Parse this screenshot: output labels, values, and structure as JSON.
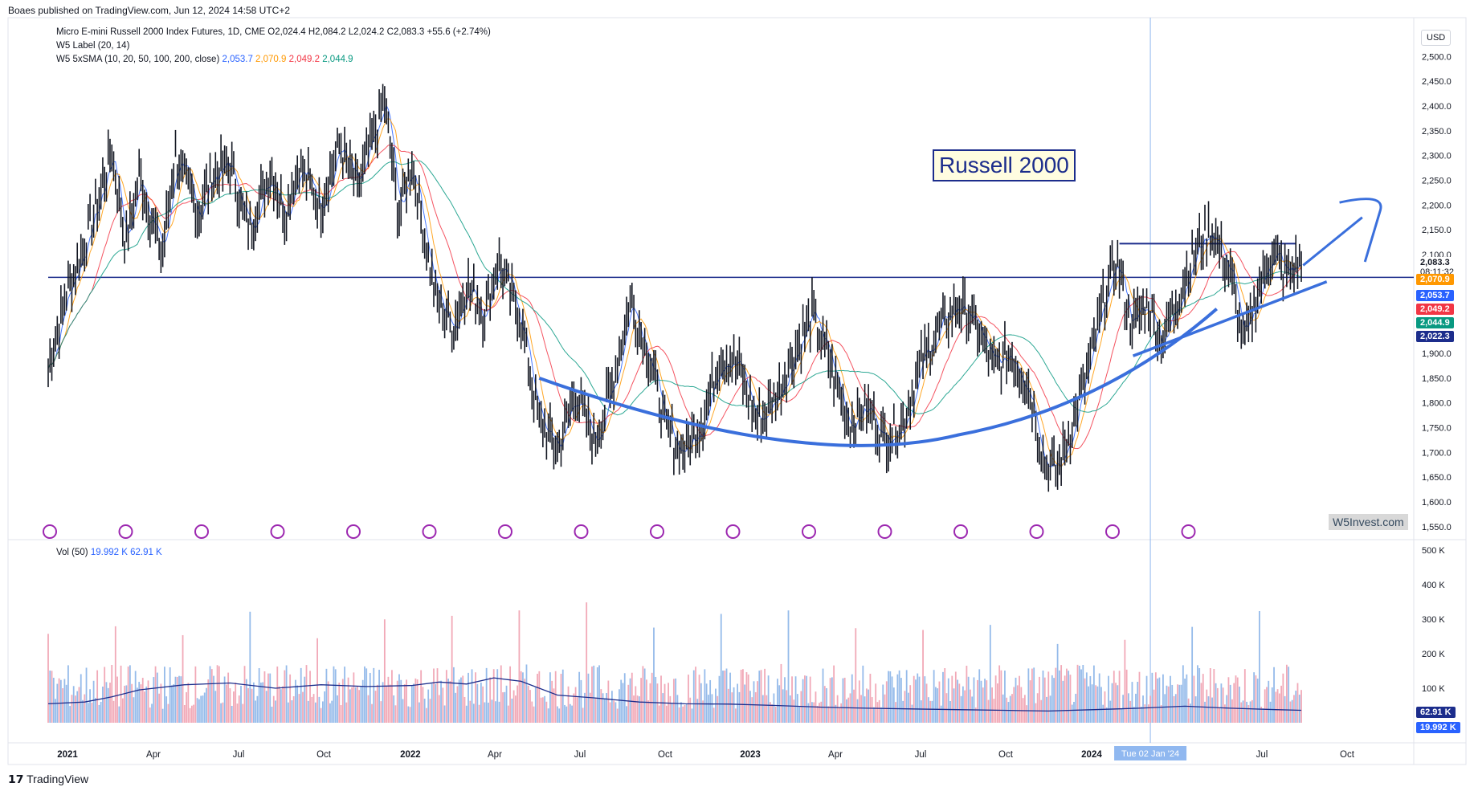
{
  "header": {
    "published": "Boaes published on TradingView.com, Jun 12, 2024 14:58 UTC+2"
  },
  "legend": {
    "symbol_line": "Micro E-mini Russell 2000 Index Futures, 1D, CME  O2,024.4  H2,084.2  L2,024.2  C2,083.3  +55.6 (+2.74%)",
    "label_line": "W5 Label (20, 14)",
    "sma_line_prefix": "W5 5xSMA (10, 20, 50, 100, 200, close)",
    "sma_values": [
      "2,053.7",
      "2,070.9",
      "2,049.2",
      "2,044.9"
    ],
    "sma_colors": [
      "#2962ff",
      "#ff9800",
      "#f23645",
      "#089981"
    ],
    "vol_prefix": "Vol (50)",
    "vol_values": [
      "19.992 K",
      "62.91 K"
    ],
    "vol_colors": [
      "#2962ff",
      "#2962ff"
    ]
  },
  "annotation": {
    "title": "Russell 2000"
  },
  "watermark": "W5Invest.com",
  "currency": "USD",
  "footer_logo": "TradingView",
  "price_badges": [
    {
      "text": "2,083.3",
      "sub": "08:11:32",
      "color": "#ffffff",
      "fg": "#131722"
    },
    {
      "text": "2,070.9",
      "color": "#ff9800"
    },
    {
      "text": "2,053.7",
      "color": "#2962ff"
    },
    {
      "text": "2,049.2",
      "color": "#f23645"
    },
    {
      "text": "2,044.9",
      "color": "#089981"
    },
    {
      "text": "2,022.3",
      "color": "#1c2d8c"
    }
  ],
  "vol_badges": [
    {
      "text": "62.91 K",
      "color": "#1c2d8c"
    },
    {
      "text": "19.992 K",
      "color": "#2962ff"
    }
  ],
  "date_label": "Tue 02 Jan '24",
  "chart_data": {
    "type": "line",
    "title": "Micro E-mini Russell 2000 Index Futures, 1D, CME",
    "price_axis": {
      "ticks": [
        1550,
        1600,
        1650,
        1700,
        1750,
        1800,
        1850,
        1900,
        1950,
        2000,
        2050,
        2100,
        2150,
        2200,
        2250,
        2300,
        2350,
        2400,
        2450,
        2500
      ],
      "tick_labels": [
        "1,550.0",
        "1,600.0",
        "1,650.0",
        "1,700.0",
        "1,750.0",
        "1,800.0",
        "1,850.0",
        "1,900.0",
        "",
        "",
        "",
        "2,100.0",
        "2,150.0",
        "2,200.0",
        "2,250.0",
        "2,300.0",
        "2,350.0",
        "2,400.0",
        "2,450.0",
        "2,500.0"
      ],
      "ylim": [
        1535,
        2525
      ]
    },
    "volume_axis": {
      "ticks": [
        "100 K",
        "200 K",
        "300 K",
        "400 K",
        "500 K"
      ],
      "ylim": [
        0,
        500000
      ]
    },
    "time_axis": [
      "2021",
      "Apr",
      "Jul",
      "Oct",
      "2022",
      "Apr",
      "Jul",
      "Oct",
      "2023",
      "Apr",
      "Jul",
      "Oct",
      "2024",
      "Apr",
      "Jul",
      "Oct"
    ],
    "time_axis_bold": [
      "2021",
      "2022",
      "2023",
      "2024"
    ],
    "close_series": {
      "name": "Close",
      "x": [
        0,
        2,
        4,
        6,
        8,
        10,
        12,
        14,
        16,
        18,
        20,
        22,
        24,
        26,
        28,
        30,
        32,
        34,
        36,
        38,
        40,
        42,
        44,
        46,
        48,
        50,
        52,
        54,
        56,
        58,
        60,
        62,
        64,
        66,
        68,
        70,
        72,
        74,
        76,
        78,
        80,
        82,
        84,
        86,
        88,
        90,
        92,
        94,
        96,
        98,
        100,
        102,
        104,
        106,
        108,
        110,
        112,
        114,
        116,
        118,
        120,
        122,
        124,
        126,
        128,
        130,
        132,
        134,
        136,
        138,
        140,
        142,
        144,
        146,
        148,
        150,
        152,
        154,
        156,
        158,
        160,
        162,
        164,
        166,
        168,
        170,
        172,
        174,
        176,
        178,
        180,
        182,
        184,
        186,
        188,
        190,
        192,
        194,
        196,
        198,
        200,
        202,
        204,
        206,
        208,
        210,
        212,
        214,
        216,
        218,
        220,
        222,
        224,
        226,
        228,
        230,
        232,
        234,
        236,
        238,
        240,
        242,
        244,
        246,
        248,
        250,
        252,
        254,
        256,
        258,
        260,
        262,
        264,
        266,
        268,
        270,
        272,
        274,
        276,
        278,
        280,
        282,
        284,
        286,
        288,
        290,
        292,
        294,
        296,
        298,
        300,
        302,
        304,
        306,
        308,
        310,
        312,
        314,
        316,
        318,
        320,
        322,
        324,
        326,
        328,
        330,
        332,
        334,
        336,
        338,
        340,
        342,
        344,
        346,
        348,
        350,
        352,
        354,
        356,
        358,
        360,
        362,
        364,
        366,
        368,
        370,
        372,
        374,
        376,
        378,
        380,
        382,
        384,
        386,
        388,
        390,
        392,
        394,
        396,
        398,
        400,
        402,
        404,
        406,
        408,
        410,
        412,
        414,
        416,
        418,
        420,
        422,
        424,
        426,
        428,
        430,
        432,
        434,
        436,
        438,
        440,
        442,
        444,
        446,
        448,
        450,
        452,
        454,
        456,
        458,
        460,
        462,
        464,
        466,
        468,
        470,
        472,
        474,
        476,
        478,
        480,
        482,
        484,
        486,
        488,
        490,
        492,
        494,
        496,
        498,
        500,
        502,
        504,
        506,
        508,
        510,
        512,
        514,
        516,
        518,
        520,
        522,
        524,
        526,
        528,
        530,
        532,
        534,
        536,
        538,
        540,
        542,
        544,
        546,
        548,
        550,
        552,
        554,
        556,
        558,
        560,
        562,
        564,
        566,
        568,
        570,
        572,
        574,
        576,
        578,
        580,
        582,
        584,
        586,
        588,
        590,
        592,
        594,
        596,
        598,
        600,
        602,
        604,
        606,
        608,
        610,
        612,
        614,
        616,
        618,
        620,
        622,
        624,
        626,
        628,
        630,
        632,
        634,
        636,
        638,
        640,
        642,
        644,
        646,
        648,
        650,
        652,
        654,
        656,
        658,
        660,
        662,
        664,
        666,
        668,
        670,
        672,
        674,
        676,
        678,
        680,
        682,
        684,
        686,
        688,
        690,
        692,
        694,
        696,
        698,
        700,
        702,
        704,
        706,
        708,
        710,
        712,
        714,
        716,
        718,
        720,
        722,
        724,
        726,
        728,
        730,
        732,
        734,
        736,
        738,
        740,
        742,
        744,
        746,
        748,
        750,
        752,
        754,
        756,
        758,
        760,
        762,
        764,
        766,
        768,
        770,
        772,
        774,
        776,
        778,
        780,
        782,
        784,
        786,
        788,
        790,
        792,
        794,
        796,
        798,
        800,
        802,
        804,
        806,
        808,
        810,
        812,
        814,
        816,
        818,
        820,
        822,
        824,
        826,
        828,
        830,
        832,
        834,
        836,
        838,
        840,
        842,
        844,
        846,
        848,
        850,
        852,
        854,
        856,
        858,
        860,
        862,
        864,
        866,
        868,
        870,
        872,
        874,
        876,
        878,
        880,
        882,
        884,
        886,
        888,
        890,
        892,
        894,
        896,
        898,
        900,
        902,
        904,
        906,
        908,
        910,
        912,
        914,
        916,
        918,
        920,
        922,
        924,
        926,
        928,
        930,
        932,
        934,
        936,
        938,
        940,
        942,
        944,
        946,
        948,
        950,
        952,
        954,
        956,
        958,
        960,
        962,
        964,
        966,
        968,
        970,
        972,
        974,
        976,
        978,
        980,
        982,
        984,
        986,
        988,
        990,
        992,
        994,
        996,
        998,
        1000,
        1002,
        1004,
        1006,
        1008,
        1010,
        1012,
        1014,
        1016,
        1018,
        1020,
        1022,
        1024,
        1026,
        1028,
        1030,
        1032,
        1034,
        1036,
        1038,
        1040,
        1042,
        1044,
        1046,
        1048,
        1050,
        1052,
        1054,
        1056,
        1058,
        1060,
        1062,
        1064,
        1066,
        1068,
        1070,
        1072,
        1074,
        1076,
        1078,
        1080,
        1082,
        1084,
        1086,
        1088,
        1090,
        1092,
        1094,
        1096,
        1098,
        1100,
        1102,
        1104,
        1106,
        1108,
        1110,
        1112,
        1114,
        1116,
        1118,
        1120,
        1122,
        1124,
        1126,
        1128,
        1130,
        1132,
        1134,
        1136,
        1138,
        1140,
        1142,
        1144,
        1146,
        1148,
        1150,
        1152,
        1154,
        1156,
        1158,
        1160,
        1162,
        1164,
        1166,
        1168,
        1170,
        1172,
        1174,
        1176,
        1178,
        1180,
        1182,
        1184,
        1186,
        1188,
        1190,
        1192,
        1194,
        1196,
        1198,
        1200,
        1202,
        1204,
        1206,
        1208,
        1210,
        1212,
        1214,
        1216,
        1218,
        1220,
        1222,
        1224,
        1226,
        1228,
        1230,
        1232,
        1234,
        1236,
        1238,
        1240,
        1242,
        1244,
        1246,
        1248,
        1250,
        1252,
        1254,
        1256,
        1258,
        1260,
        1262,
        1264,
        1266,
        1268,
        1270,
        1272,
        1274,
        1276,
        1278,
        1280,
        1282,
        1284,
        1286,
        1288,
        1290,
        1292,
        1294,
        1296,
        1298,
        1300,
        1302,
        1304,
        1306,
        1308,
        1310,
        1312,
        1314,
        1316,
        1318,
        1320,
        1322,
        1324,
        1326,
        1328,
        1330,
        1332,
        1334,
        1336,
        1338,
        1340,
        1342,
        1344,
        1346,
        1348,
        1350,
        1352,
        1354,
        1356,
        1358,
        1360,
        1362,
        1364,
        1366,
        1368,
        1370,
        1372,
        1374,
        1376,
        1378
      ],
      "anchors": [
        [
          0,
          1870
        ],
        [
          20,
          2020
        ],
        [
          40,
          2120
        ],
        [
          55,
          2210
        ],
        [
          70,
          2310
        ],
        [
          85,
          2120
        ],
        [
          100,
          2260
        ],
        [
          125,
          2100
        ],
        [
          140,
          2300
        ],
        [
          165,
          2180
        ],
        [
          180,
          2260
        ],
        [
          200,
          2280
        ],
        [
          220,
          2150
        ],
        [
          245,
          2270
        ],
        [
          260,
          2180
        ],
        [
          275,
          2280
        ],
        [
          300,
          2200
        ],
        [
          320,
          2320
        ],
        [
          340,
          2230
        ],
        [
          355,
          2320
        ],
        [
          370,
          2410
        ],
        [
          385,
          2180
        ],
        [
          400,
          2290
        ],
        [
          425,
          2020
        ],
        [
          445,
          1950
        ],
        [
          460,
          2040
        ],
        [
          480,
          1980
        ],
        [
          495,
          2090
        ],
        [
          520,
          1960
        ],
        [
          540,
          1760
        ],
        [
          560,
          1710
        ],
        [
          580,
          1820
        ],
        [
          600,
          1720
        ],
        [
          620,
          1830
        ],
        [
          640,
          2010
        ],
        [
          660,
          1900
        ],
        [
          680,
          1740
        ],
        [
          700,
          1700
        ],
        [
          720,
          1770
        ],
        [
          740,
          1900
        ],
        [
          760,
          1870
        ],
        [
          780,
          1760
        ],
        [
          800,
          1810
        ],
        [
          820,
          1900
        ],
        [
          840,
          1980
        ],
        [
          860,
          1880
        ],
        [
          880,
          1760
        ],
        [
          900,
          1790
        ],
        [
          920,
          1730
        ],
        [
          940,
          1760
        ],
        [
          960,
          1880
        ],
        [
          980,
          1950
        ],
        [
          1000,
          2000
        ],
        [
          1020,
          1960
        ],
        [
          1040,
          1870
        ],
        [
          1060,
          1900
        ],
        [
          1080,
          1820
        ],
        [
          1095,
          1680
        ],
        [
          1110,
          1660
        ],
        [
          1130,
          1780
        ],
        [
          1145,
          1880
        ],
        [
          1160,
          2000
        ],
        [
          1175,
          2090
        ],
        [
          1190,
          1960
        ],
        [
          1210,
          2000
        ],
        [
          1225,
          1920
        ],
        [
          1245,
          2030
        ],
        [
          1265,
          2120
        ],
        [
          1280,
          2150
        ],
        [
          1300,
          2060
        ],
        [
          1315,
          1920
        ],
        [
          1330,
          2020
        ],
        [
          1345,
          2110
        ],
        [
          1360,
          2060
        ],
        [
          1378,
          2083
        ]
      ]
    },
    "sma_series": [
      {
        "name": "SMA 10",
        "color": "#2962ff",
        "period": 10
      },
      {
        "name": "SMA 20",
        "color": "#ff9800",
        "period": 20
      },
      {
        "name": "SMA 50",
        "color": "#f23645",
        "period": 50
      },
      {
        "name": "SMA 100",
        "color": "#089981",
        "period": 100
      }
    ],
    "horizontal_levels": [
      {
        "price": 2053.7,
        "color": "#1c2d8c"
      },
      {
        "price": 2122,
        "color": "#1c2d8c",
        "from_x": 1178,
        "to_x": 1372
      }
    ],
    "vertical_line_x": 1212,
    "volume_avg_anchor": [
      [
        0,
        55
      ],
      [
        40,
        60
      ],
      [
        70,
        75
      ],
      [
        100,
        95
      ],
      [
        150,
        110
      ],
      [
        200,
        115
      ],
      [
        250,
        100
      ],
      [
        300,
        110
      ],
      [
        350,
        105
      ],
      [
        400,
        108
      ],
      [
        430,
        118
      ],
      [
        460,
        112
      ],
      [
        490,
        130
      ],
      [
        520,
        120
      ],
      [
        560,
        80
      ],
      [
        600,
        72
      ],
      [
        650,
        60
      ],
      [
        700,
        55
      ],
      [
        750,
        54
      ],
      [
        800,
        50
      ],
      [
        850,
        45
      ],
      [
        900,
        42
      ],
      [
        950,
        40
      ],
      [
        1000,
        38
      ],
      [
        1050,
        36
      ],
      [
        1100,
        34
      ],
      [
        1150,
        38
      ],
      [
        1200,
        42
      ],
      [
        1250,
        48
      ],
      [
        1300,
        42
      ],
      [
        1350,
        38
      ],
      [
        1378,
        36
      ]
    ]
  }
}
